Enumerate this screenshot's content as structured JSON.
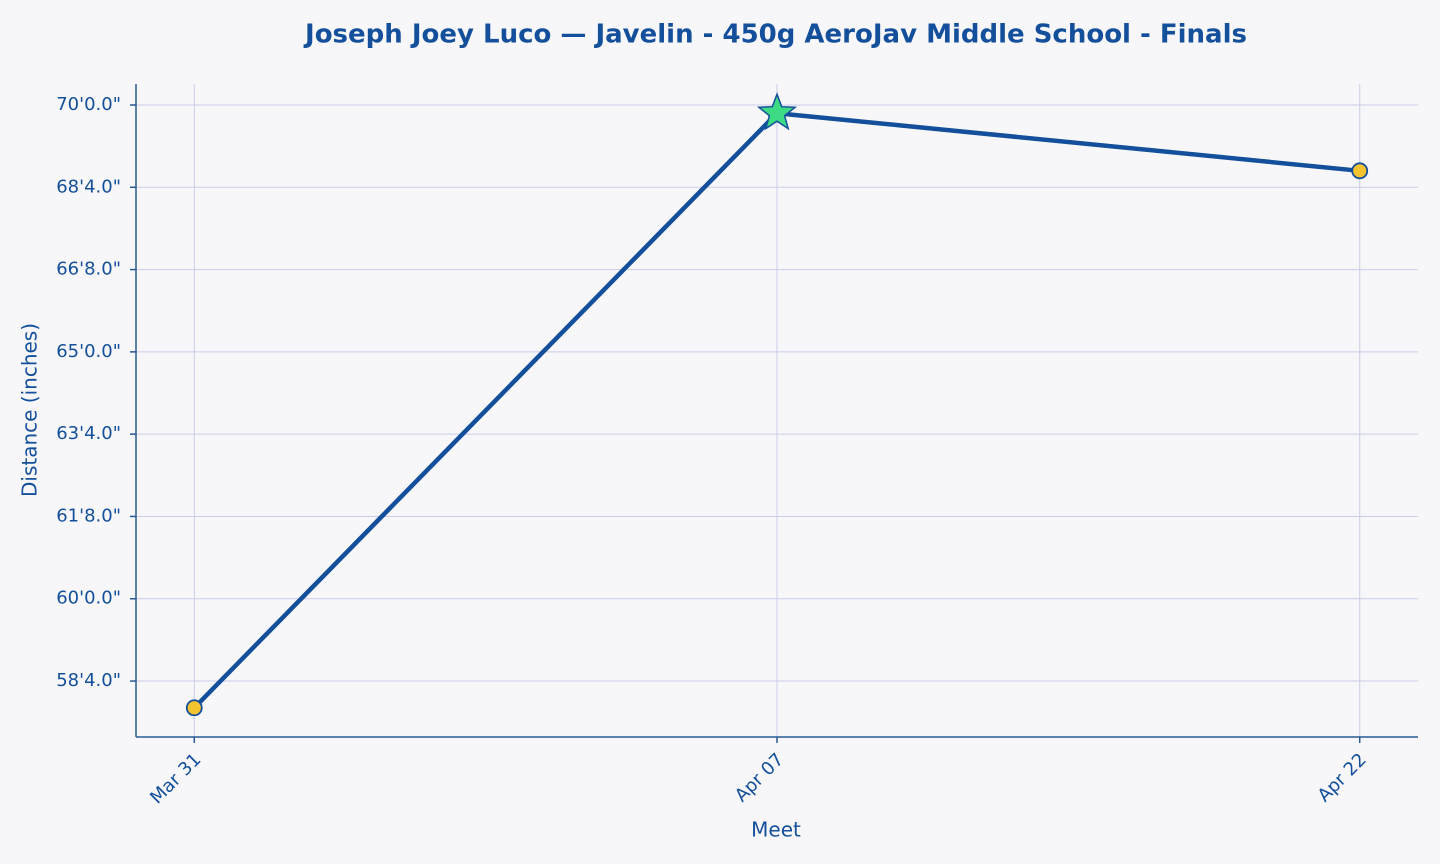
{
  "chart_data": {
    "type": "line",
    "title": "Joseph Joey Luco — Javelin - 450g AeroJav Middle School - Finals",
    "x_label": "Meet",
    "y_label": "Distance (inches)",
    "categories": [
      "Mar 31",
      "Apr 07",
      "Apr 22"
    ],
    "series": [
      {
        "name": "Distance",
        "color": "#134f9a",
        "values": [
          693.5,
          838,
          824
        ]
      }
    ],
    "marker_color": "#f4c430",
    "best_marker_color": "#3ddc84",
    "highlight_max": true,
    "ylim": [
      686.4,
      845.1
    ],
    "yticks": [
      {
        "value": 700,
        "label": "58'4.0\""
      },
      {
        "value": 720,
        "label": "60'0.0\""
      },
      {
        "value": 740,
        "label": "61'8.0\""
      },
      {
        "value": 760,
        "label": "63'4.0\""
      },
      {
        "value": 780,
        "label": "65'0.0\""
      },
      {
        "value": 800,
        "label": "66'8.0\""
      },
      {
        "value": 820,
        "label": "68'4.0\""
      },
      {
        "value": 840,
        "label": "70'0.0\""
      }
    ],
    "grid": true
  }
}
